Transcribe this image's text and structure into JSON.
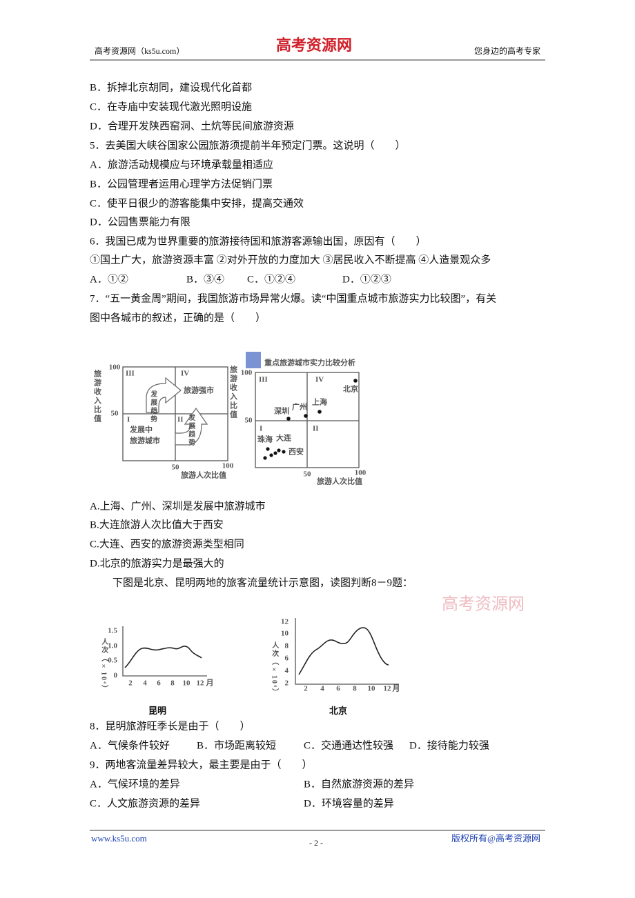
{
  "header": {
    "left": "高考资源网（ks5u.com）",
    "logo": "高考资源网",
    "right": "您身边的高考专家"
  },
  "lines_top": [
    "B．拆掉北京胡同，建设现代化首都",
    "C．在寺庙中安装现代激光照明设施",
    "D．合理开发陕西窑洞、土炕等民间旅游资源",
    "5．去美国大峡谷国家公园旅游须提前半年预定门票。这说明（　　）",
    "A．旅游活动规模应与环境承载量相适应",
    "B．公园管理者运用心理学方法促销门票",
    "C．使平日很少的游客能集中安排，提高交通效",
    "D．公园售票能力有限",
    "6．我国已成为世界重要的旅游接待国和旅游客源输出国，原因有（　　）",
    "①国土广大，旅游资源丰富 ②对外开放的力度加大 ③居民收入不断提高 ④人造景观众多"
  ],
  "q6_options": [
    "A．①②",
    "B．③④",
    "C．①②④",
    "D．①②③"
  ],
  "q7_stem": [
    "7．“五一黄金周”期间，我国旅游市场异常火爆。读“中国重点城市旅游实力比较图”，有关",
    "图中各城市的叙述，正确的是（　　）"
  ],
  "figure1": {
    "left": {
      "ylabel": "旅游收入比值",
      "yticks": [
        "100",
        "50"
      ],
      "xticks": [
        "50",
        "100"
      ],
      "xlabel": "旅游人次比值",
      "quadrants": [
        "III",
        "IV",
        "I",
        "II"
      ],
      "strong": "旅游强市",
      "developing": [
        "发展中",
        "旅游城市"
      ],
      "arrow": "发展趋势"
    },
    "right": {
      "title": "重点旅游城市实力比较分析",
      "ylabel": "旅游收入比值",
      "yticks": [
        "100",
        "50"
      ],
      "xticks": [
        "50",
        "100"
      ],
      "xlabel": "旅游人次比值",
      "quadrants": [
        "III",
        "IV",
        "I",
        "II"
      ],
      "cities": [
        "北京",
        "上海",
        "广州",
        "深圳",
        "珠海",
        "大连",
        "西安"
      ]
    }
  },
  "q7_options": [
    "A.上海、广州、深圳是发展中旅游城市",
    "B.大连旅游人次比值大于西安",
    "C.大连、西安的旅游资源类型相同",
    "D.北京的旅游实力是最强大的"
  ],
  "intro": "下图是北京、昆明两地的旅客流量统计示意图，读图判断8－9题：",
  "watermark": "高考资源网",
  "figure2": {
    "kunming": {
      "ylabel": "人次（×10⁴）",
      "yticks": [
        "1.5",
        "1.0",
        "0.5",
        "0"
      ],
      "xticks": [
        "2",
        "4",
        "6",
        "8",
        "10",
        "12"
      ],
      "xunit": "月",
      "caption": "昆明"
    },
    "beijing": {
      "ylabel": "人次（×10⁴）",
      "yticks": [
        "12",
        "10",
        "8",
        "6",
        "4",
        "2"
      ],
      "xticks": [
        "2",
        "4",
        "6",
        "8",
        "10",
        "12"
      ],
      "xunit": "月",
      "caption": "北京"
    }
  },
  "q8": {
    "stem": "8．昆明旅游旺季长是由于（　　）",
    "options": [
      "A．气候条件较好",
      "B．市场距离较短",
      "C．交通通达性较强",
      "D．接待能力较强"
    ]
  },
  "q9": {
    "stem": "9．两地客流量差异较大，最主要是由于（　　）",
    "options": [
      "A．气候环境的差异",
      "B．自然旅游资源的差异",
      "C．人文旅游资源的差异",
      "D．环境容量的差异"
    ]
  },
  "footer": {
    "left": "www.ks5u.com",
    "page": "- 2 -",
    "right": "版权所有@高考资源网"
  }
}
